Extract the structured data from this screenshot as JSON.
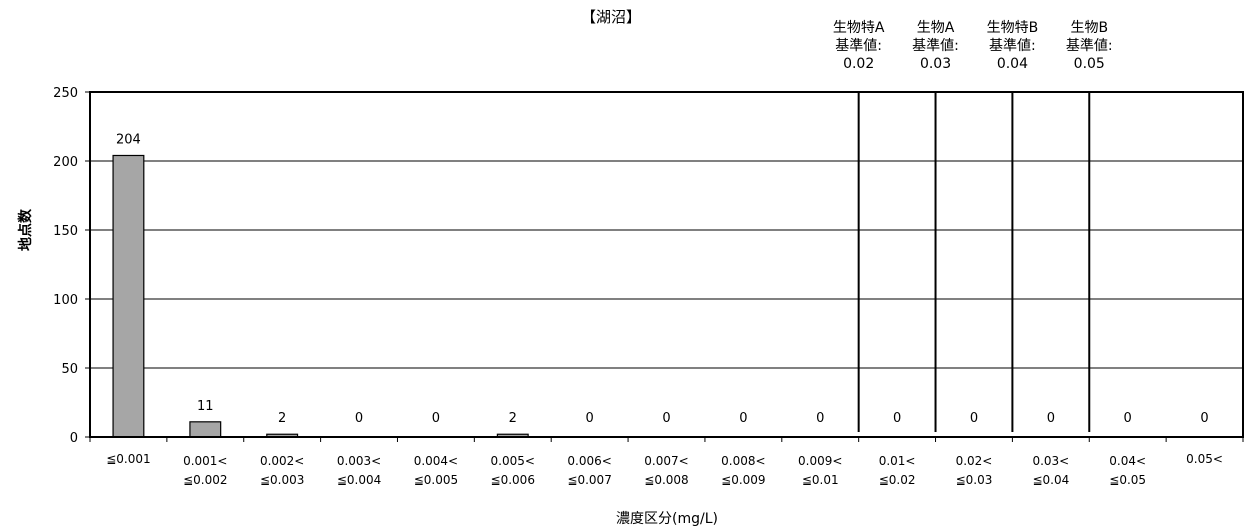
{
  "chart_data": {
    "type": "bar",
    "title": "【湖沼】",
    "xlabel": "濃度区分(mg/L)",
    "ylabel": "地点数",
    "ylim": [
      0,
      250
    ],
    "yticks": [
      0,
      50,
      100,
      150,
      200,
      250
    ],
    "grid": true,
    "categories": [
      [
        "≦0.001"
      ],
      [
        "0.001<",
        "≦0.002"
      ],
      [
        "0.002<",
        "≦0.003"
      ],
      [
        "0.003<",
        "≦0.004"
      ],
      [
        "0.004<",
        "≦0.005"
      ],
      [
        "0.005<",
        "≦0.006"
      ],
      [
        "0.006<",
        "≦0.007"
      ],
      [
        "0.007<",
        "≦0.008"
      ],
      [
        "0.008<",
        "≦0.009"
      ],
      [
        "0.009<",
        "≦0.01"
      ],
      [
        "0.01<",
        "≦0.02"
      ],
      [
        "0.02<",
        "≦0.03"
      ],
      [
        "0.03<",
        "≦0.04"
      ],
      [
        "0.04<",
        "≦0.05"
      ],
      [
        "0.05<"
      ]
    ],
    "values": [
      204,
      11,
      2,
      0,
      0,
      2,
      0,
      0,
      0,
      0,
      0,
      0,
      0,
      0,
      0
    ],
    "bar_color": "#a6a6a6",
    "thresholds": [
      {
        "label": [
          "生物特A",
          "基準値:",
          "0.02"
        ],
        "value": 0.02
      },
      {
        "label": [
          "生物A",
          "基準値:",
          "0.03"
        ],
        "value": 0.03
      },
      {
        "label": [
          "生物特B",
          "基準値:",
          "0.04"
        ],
        "value": 0.04
      },
      {
        "label": [
          "生物B",
          "基準値:",
          "0.05"
        ],
        "value": 0.05
      }
    ]
  }
}
